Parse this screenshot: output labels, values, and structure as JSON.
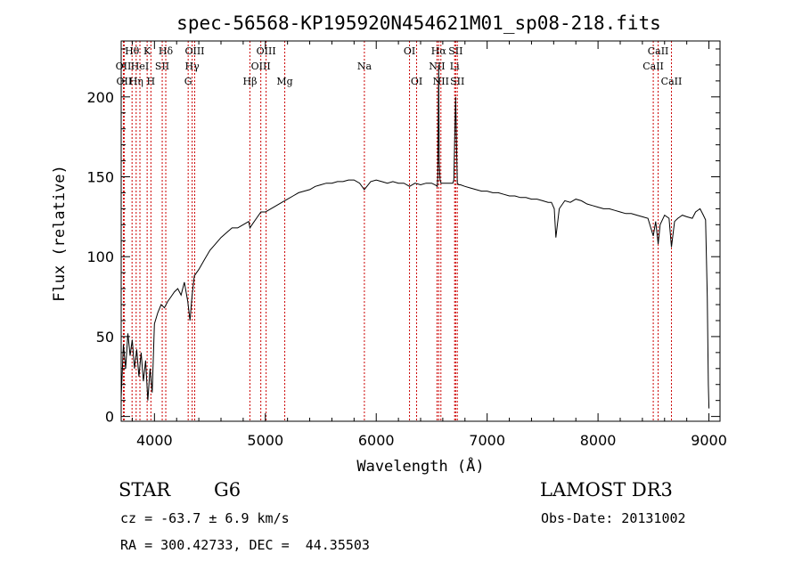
{
  "chart_data": {
    "type": "line",
    "title": "spec-56568-KP195920N454621M01_sp08-218.fits",
    "xlabel": "Wavelength (Å)",
    "ylabel": "Flux (relative)",
    "xlim": [
      3700,
      9100
    ],
    "ylim": [
      -3,
      235
    ],
    "xticks": [
      4000,
      5000,
      6000,
      7000,
      8000,
      9000
    ],
    "yticks": [
      0,
      50,
      100,
      150,
      200
    ],
    "grid": false,
    "series": [
      {
        "x": [
          3700,
          3720,
          3740,
          3760,
          3780,
          3800,
          3820,
          3840,
          3860,
          3880,
          3900,
          3920,
          3940,
          3960,
          3980,
          4000,
          4030,
          4060,
          4090,
          4120,
          4150,
          4180,
          4210,
          4240,
          4270,
          4300,
          4320,
          4340,
          4360,
          4400,
          4450,
          4500,
          4550,
          4600,
          4650,
          4700,
          4750,
          4800,
          4850,
          4861,
          4880,
          4920,
          4960,
          5000,
          5050,
          5100,
          5150,
          5200,
          5250,
          5300,
          5350,
          5400,
          5450,
          5500,
          5550,
          5600,
          5650,
          5700,
          5750,
          5800,
          5850,
          5892,
          5950,
          6000,
          6050,
          6100,
          6150,
          6200,
          6250,
          6300,
          6350,
          6400,
          6450,
          6500,
          6530,
          6550,
          6555,
          6563,
          6568,
          6575,
          6585,
          6600,
          6650,
          6690,
          6700,
          6716,
          6725,
          6731,
          6745,
          6760,
          6800,
          6850,
          6900,
          6950,
          7000,
          7050,
          7100,
          7150,
          7200,
          7250,
          7300,
          7350,
          7400,
          7450,
          7500,
          7550,
          7580,
          7605,
          7620,
          7650,
          7700,
          7750,
          7800,
          7850,
          7900,
          7950,
          8000,
          8050,
          8100,
          8150,
          8200,
          8250,
          8300,
          8350,
          8400,
          8450,
          8498,
          8520,
          8542,
          8560,
          8600,
          8640,
          8662,
          8690,
          8720,
          8760,
          8800,
          8850,
          8880,
          8920,
          8950,
          8970,
          8985,
          8995,
          9000
        ],
        "y": [
          12,
          45,
          30,
          52,
          38,
          48,
          30,
          42,
          25,
          40,
          22,
          35,
          10,
          30,
          15,
          58,
          65,
          70,
          68,
          72,
          75,
          78,
          80,
          76,
          84,
          72,
          60,
          76,
          88,
          92,
          98,
          104,
          108,
          112,
          115,
          118,
          118,
          120,
          122,
          118,
          120,
          124,
          128,
          128,
          130,
          132,
          134,
          136,
          138,
          140,
          141,
          142,
          144,
          145,
          146,
          146,
          147,
          147,
          148,
          148,
          146,
          142,
          147,
          148,
          147,
          146,
          147,
          146,
          146,
          144,
          146,
          145,
          146,
          146,
          145,
          144,
          150,
          220,
          160,
          148,
          146,
          146,
          146,
          146,
          148,
          200,
          168,
          146,
          145,
          145,
          144,
          143,
          142,
          141,
          141,
          140,
          140,
          139,
          138,
          138,
          137,
          137,
          136,
          136,
          135,
          134,
          134,
          130,
          112,
          130,
          135,
          134,
          136,
          135,
          133,
          132,
          131,
          130,
          130,
          129,
          128,
          127,
          127,
          126,
          125,
          124,
          113,
          122,
          108,
          120,
          126,
          124,
          106,
          122,
          124,
          126,
          125,
          124,
          128,
          130,
          126,
          123,
          75,
          20,
          5
        ]
      }
    ],
    "lines": [
      {
        "wavelength": 3720,
        "label": "OII",
        "row": 2
      },
      {
        "wavelength": 3727,
        "label": "OII",
        "row": 3
      },
      {
        "wavelength": 3798,
        "label": "Hθ",
        "row": 1
      },
      {
        "wavelength": 3835,
        "label": "Hη",
        "row": 3
      },
      {
        "wavelength": 3869,
        "label": "HeI",
        "row": 2
      },
      {
        "wavelength": 3934,
        "label": "K",
        "row": 1
      },
      {
        "wavelength": 3968,
        "label": "H",
        "row": 3
      },
      {
        "wavelength": 4070,
        "label": "SII",
        "row": 2
      },
      {
        "wavelength": 4102,
        "label": "Hδ",
        "row": 1
      },
      {
        "wavelength": 4304,
        "label": "G",
        "row": 3
      },
      {
        "wavelength": 4340,
        "label": "Hγ",
        "row": 2
      },
      {
        "wavelength": 4363,
        "label": "OIII",
        "row": 1
      },
      {
        "wavelength": 4861,
        "label": "Hβ",
        "row": 3
      },
      {
        "wavelength": 4959,
        "label": "OIII",
        "row": 2
      },
      {
        "wavelength": 5007,
        "label": "OIII",
        "row": 1
      },
      {
        "wavelength": 5175,
        "label": "Mg",
        "row": 3
      },
      {
        "wavelength": 5893,
        "label": "Na",
        "row": 2
      },
      {
        "wavelength": 6300,
        "label": "OI",
        "row": 1
      },
      {
        "wavelength": 6364,
        "label": "OI",
        "row": 3
      },
      {
        "wavelength": 6548,
        "label": "NII",
        "row": 2
      },
      {
        "wavelength": 6563,
        "label": "Hα",
        "row": 1
      },
      {
        "wavelength": 6583,
        "label": "NII",
        "row": 3
      },
      {
        "wavelength": 6707,
        "label": "Li",
        "row": 2
      },
      {
        "wavelength": 6716,
        "label": "SII",
        "row": 1
      },
      {
        "wavelength": 6731,
        "label": "SII",
        "row": 3
      },
      {
        "wavelength": 8498,
        "label": "CaII",
        "row": 2
      },
      {
        "wavelength": 8542,
        "label": "CaII",
        "row": 1
      },
      {
        "wavelength": 8662,
        "label": "CaII",
        "row": 3
      }
    ]
  },
  "info": {
    "class_label": "STAR",
    "subclass_label": "G6",
    "survey_label": "LAMOST DR3",
    "cz_text": "cz = -63.7 ± 6.9 km/s",
    "obsdate_text": "Obs-Date: 20131002",
    "radec_text": "RA = 300.42733, DEC =  44.35503"
  },
  "colors": {
    "spectrum": "#000000",
    "line_markers": "#cc0000",
    "axes": "#000000"
  }
}
